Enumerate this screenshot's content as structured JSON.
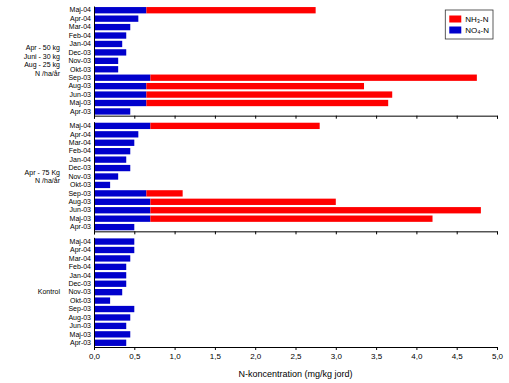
{
  "chart_data": [
    {
      "type": "bar",
      "orientation": "horizontal",
      "stacked": true,
      "ylabel": "Apr - 50 kg\nJuni - 30 kg\nAug - 25 kg\nN /ha/år",
      "categories": [
        "Maj-04",
        "Apr-04",
        "Mar-04",
        "Feb-04",
        "Jan-04",
        "Dec-03",
        "Nov-03",
        "Okt-03",
        "Sep-03",
        "Aug-03",
        "Jun-03",
        "Maj-03",
        "Apr-03"
      ],
      "series": [
        {
          "name": "NO₄-N",
          "color": "#0000CC",
          "values": [
            0.65,
            0.55,
            0.45,
            0.4,
            0.35,
            0.4,
            0.3,
            0.3,
            0.7,
            0.65,
            0.65,
            0.65,
            0.45
          ]
        },
        {
          "name": "NH₃-N",
          "color": "#FF0000",
          "values": [
            2.1,
            0.0,
            0.0,
            0.0,
            0.0,
            0.0,
            0.0,
            0.0,
            4.05,
            2.7,
            3.05,
            3.0,
            0.0
          ]
        }
      ],
      "xlim": [
        0.0,
        5.0
      ],
      "xticks": [
        0.0,
        0.5,
        1.0,
        1.5,
        2.0,
        2.5,
        3.0,
        3.5,
        4.0,
        4.5,
        5.0
      ],
      "tick_labels": "y",
      "legend": "upper right"
    },
    {
      "type": "bar",
      "orientation": "horizontal",
      "stacked": true,
      "ylabel": "Apr - 75 Kg\nN /ha/år",
      "categories": [
        "Maj-04",
        "Apr-04",
        "Mar-04",
        "Feb-04",
        "Jan-04",
        "Dec-03",
        "Nov-03",
        "Okt-03",
        "Sep-03",
        "Aug-03",
        "Jun-03",
        "Maj-03",
        "Apr-03"
      ],
      "series": [
        {
          "color": "#0000CC",
          "values": [
            0.7,
            0.55,
            0.5,
            0.45,
            0.4,
            0.45,
            0.3,
            0.2,
            0.65,
            0.7,
            0.7,
            0.7,
            0.5
          ]
        },
        {
          "color": "#FF0000",
          "values": [
            2.1,
            0.0,
            0.0,
            0.0,
            0.0,
            0.0,
            0.0,
            0.0,
            0.45,
            2.3,
            4.1,
            3.5,
            0.0
          ]
        }
      ],
      "xlim": [
        0.0,
        5.0
      ],
      "xticks": [
        0.0,
        0.5,
        1.0,
        1.5,
        2.0,
        2.5,
        3.0,
        3.5,
        4.0,
        4.5,
        5.0
      ],
      "tick_labels": "y"
    },
    {
      "type": "bar",
      "orientation": "horizontal",
      "stacked": true,
      "ylabel": "Kontrol",
      "xlabel": "N-koncentration (mg/kg jord)",
      "categories": [
        "Maj-04",
        "Apr-04",
        "Mar-04",
        "Feb-04",
        "Jan-04",
        "Dec-03",
        "Nov-03",
        "Okt-03",
        "Sep-03",
        "Aug-03",
        "Jun-03",
        "Maj-03",
        "Apr-03"
      ],
      "series": [
        {
          "color": "#0000CC",
          "values": [
            0.5,
            0.5,
            0.45,
            0.4,
            0.4,
            0.4,
            0.35,
            0.2,
            0.5,
            0.45,
            0.4,
            0.45,
            0.4
          ]
        },
        {
          "color": "#FF0000",
          "values": [
            0.0,
            0.0,
            0.0,
            0.0,
            0.0,
            0.0,
            0.0,
            0.0,
            0.0,
            0.0,
            0.0,
            0.0,
            0.0
          ]
        }
      ],
      "xlim": [
        0.0,
        5.0
      ],
      "xticks": [
        {
          "value": 0.0,
          "label": "0,0"
        },
        {
          "value": 0.5,
          "label": "0,5"
        },
        {
          "value": 1.0,
          "label": "1,0"
        },
        {
          "value": 1.5,
          "label": "1,5"
        },
        {
          "value": 2.0,
          "label": "2,0"
        },
        {
          "value": 2.5,
          "label": "2,5"
        },
        {
          "value": 3.0,
          "label": "3,0"
        },
        {
          "value": 3.5,
          "label": "3,5"
        },
        {
          "value": 4.0,
          "label": "4,0"
        },
        {
          "value": 4.5,
          "label": "4,5"
        },
        {
          "value": 5.0,
          "label": "5,0"
        }
      ]
    }
  ]
}
